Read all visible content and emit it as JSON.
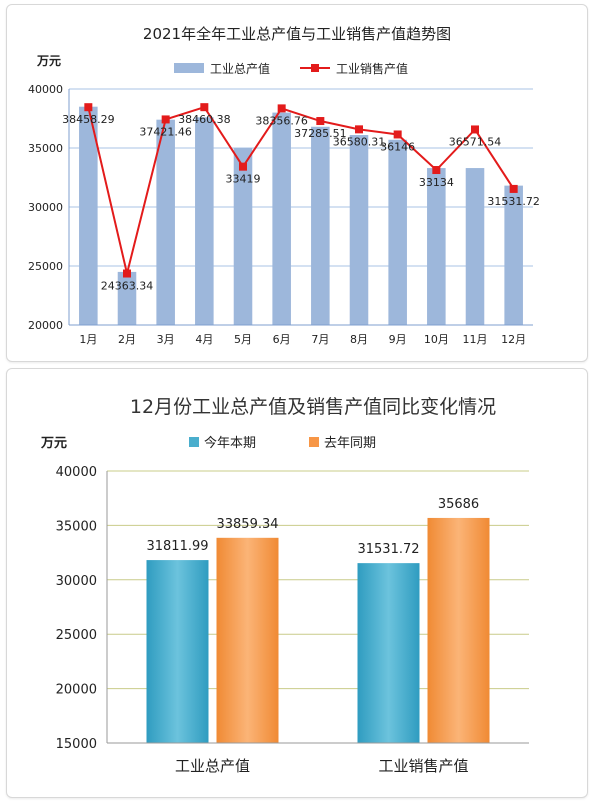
{
  "chart_data": [
    {
      "type": "bar+line",
      "title": "2021年全年工业总产值与工业销售产值趋势图",
      "unit_label": "万元",
      "categories": [
        "1月",
        "2月",
        "3月",
        "4月",
        "5月",
        "6月",
        "7月",
        "8月",
        "9月",
        "10月",
        "11月",
        "12月"
      ],
      "series": [
        {
          "name": "工业总产值",
          "type": "bar",
          "color": "#9db7db",
          "values": [
            38500,
            24500,
            37400,
            37600,
            35000,
            38000,
            36800,
            36100,
            35700,
            33300,
            33300,
            31812
          ]
        },
        {
          "name": "工业销售产值",
          "type": "line",
          "color": "#e31b1b",
          "values": [
            38458.29,
            24363.34,
            37421.46,
            38460.38,
            33419,
            38356.76,
            37285.51,
            36580.31,
            36146,
            33134,
            36571.54,
            31531.72
          ],
          "labels": [
            "38458.29",
            "24363.34",
            "37421.46",
            "38460.38",
            "33419",
            "38356.76",
            "37285.51",
            "36580.31",
            "36146",
            "33134",
            "36571.54",
            "31531.72"
          ]
        }
      ],
      "ylim": [
        20000,
        40000
      ],
      "yticks": [
        "20000",
        "25000",
        "30000",
        "35000",
        "40000"
      ],
      "legend_position": "top",
      "grid": true
    },
    {
      "type": "bar",
      "title": "12月份工业总产值及销售产值同比变化情况",
      "unit_label": "万元",
      "categories": [
        "工业总产值",
        "工业销售产值"
      ],
      "series": [
        {
          "name": "今年本期",
          "color": "#4aaecd",
          "values": [
            31811.99,
            31531.72
          ],
          "labels": [
            "31811.99",
            "31531.72"
          ]
        },
        {
          "name": "去年同期",
          "color": "#f79646",
          "values": [
            33859.34,
            35686
          ],
          "labels": [
            "33859.34",
            "35686"
          ]
        }
      ],
      "ylim": [
        15000,
        40000
      ],
      "yticks": [
        "15000",
        "20000",
        "25000",
        "30000",
        "35000",
        "40000"
      ],
      "legend_position": "top",
      "grid": true
    }
  ]
}
